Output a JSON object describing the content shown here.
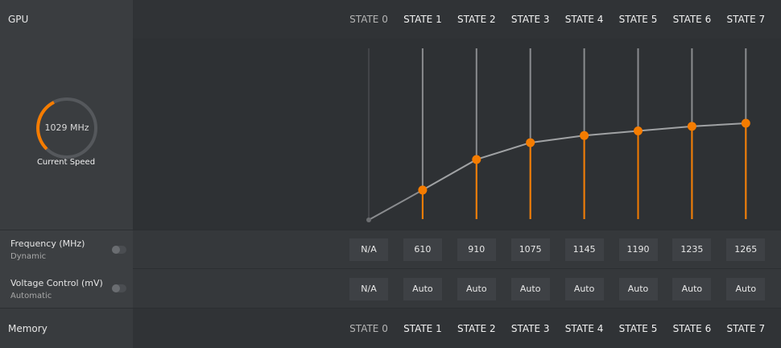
{
  "gpu": {
    "title": "GPU",
    "current_speed": "1029 MHz",
    "current_speed_label": "Current Speed"
  },
  "chart_data": {
    "type": "line",
    "categories": [
      "STATE 0",
      "STATE 1",
      "STATE 2",
      "STATE 3",
      "STATE 4",
      "STATE 5",
      "STATE 6",
      "STATE 7"
    ],
    "values": [
      null,
      610,
      910,
      1075,
      1145,
      1190,
      1235,
      1265
    ],
    "value_labels": [
      "N/A",
      "610",
      "910",
      "1075",
      "1145",
      "1190",
      "1235",
      "1265"
    ],
    "ylim": [
      325,
      2000
    ],
    "color": "#f57c00"
  },
  "frequency": {
    "label": "Frequency (MHz)",
    "mode": "Dynamic"
  },
  "voltage": {
    "label": "Voltage Control (mV)",
    "mode": "Automatic",
    "values": [
      "N/A",
      "Auto",
      "Auto",
      "Auto",
      "Auto",
      "Auto",
      "Auto",
      "Auto"
    ]
  },
  "memory": {
    "title": "Memory",
    "states": [
      "STATE 0",
      "STATE 1",
      "STATE 2",
      "STATE 3",
      "STATE 4",
      "STATE 5",
      "STATE 6",
      "STATE 7"
    ]
  }
}
